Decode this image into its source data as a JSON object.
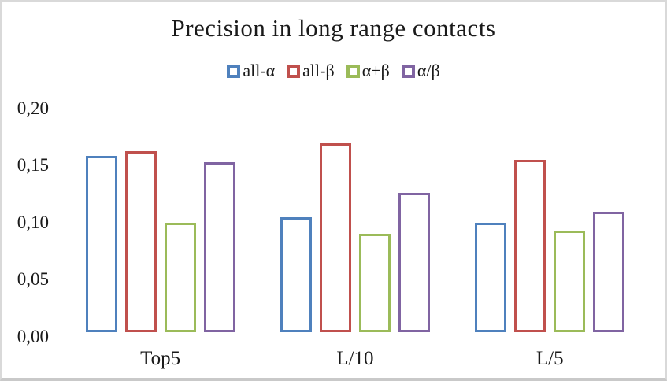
{
  "chart_data": {
    "type": "bar",
    "title": "Precision in long range contacts",
    "categories": [
      "Top5",
      "L/10",
      "L/5"
    ],
    "series": [
      {
        "name": "all-α",
        "color": "#4F81BD",
        "values": [
          0.155,
          0.101,
          0.096
        ]
      },
      {
        "name": "all-β",
        "color": "#C0504D",
        "values": [
          0.159,
          0.166,
          0.151
        ]
      },
      {
        "name": "α+β",
        "color": "#9BBB59",
        "values": [
          0.096,
          0.086,
          0.089
        ]
      },
      {
        "name": "α/β",
        "color": "#8064A2",
        "values": [
          0.149,
          0.122,
          0.106
        ]
      }
    ],
    "bar_style": "hollow-outline",
    "xlabel": "",
    "ylabel": "",
    "ylim": [
      0.0,
      0.2
    ],
    "y_ticks": [
      {
        "label": "0,00",
        "value": 0.0
      },
      {
        "label": "0,05",
        "value": 0.05
      },
      {
        "label": "0,10",
        "value": 0.1
      },
      {
        "label": "0,15",
        "value": 0.15
      },
      {
        "label": "0,20",
        "value": 0.2
      }
    ],
    "decimal_separator": ",",
    "grid": false,
    "legend_position": "top",
    "frame_border_color": "#d9d9d9"
  }
}
